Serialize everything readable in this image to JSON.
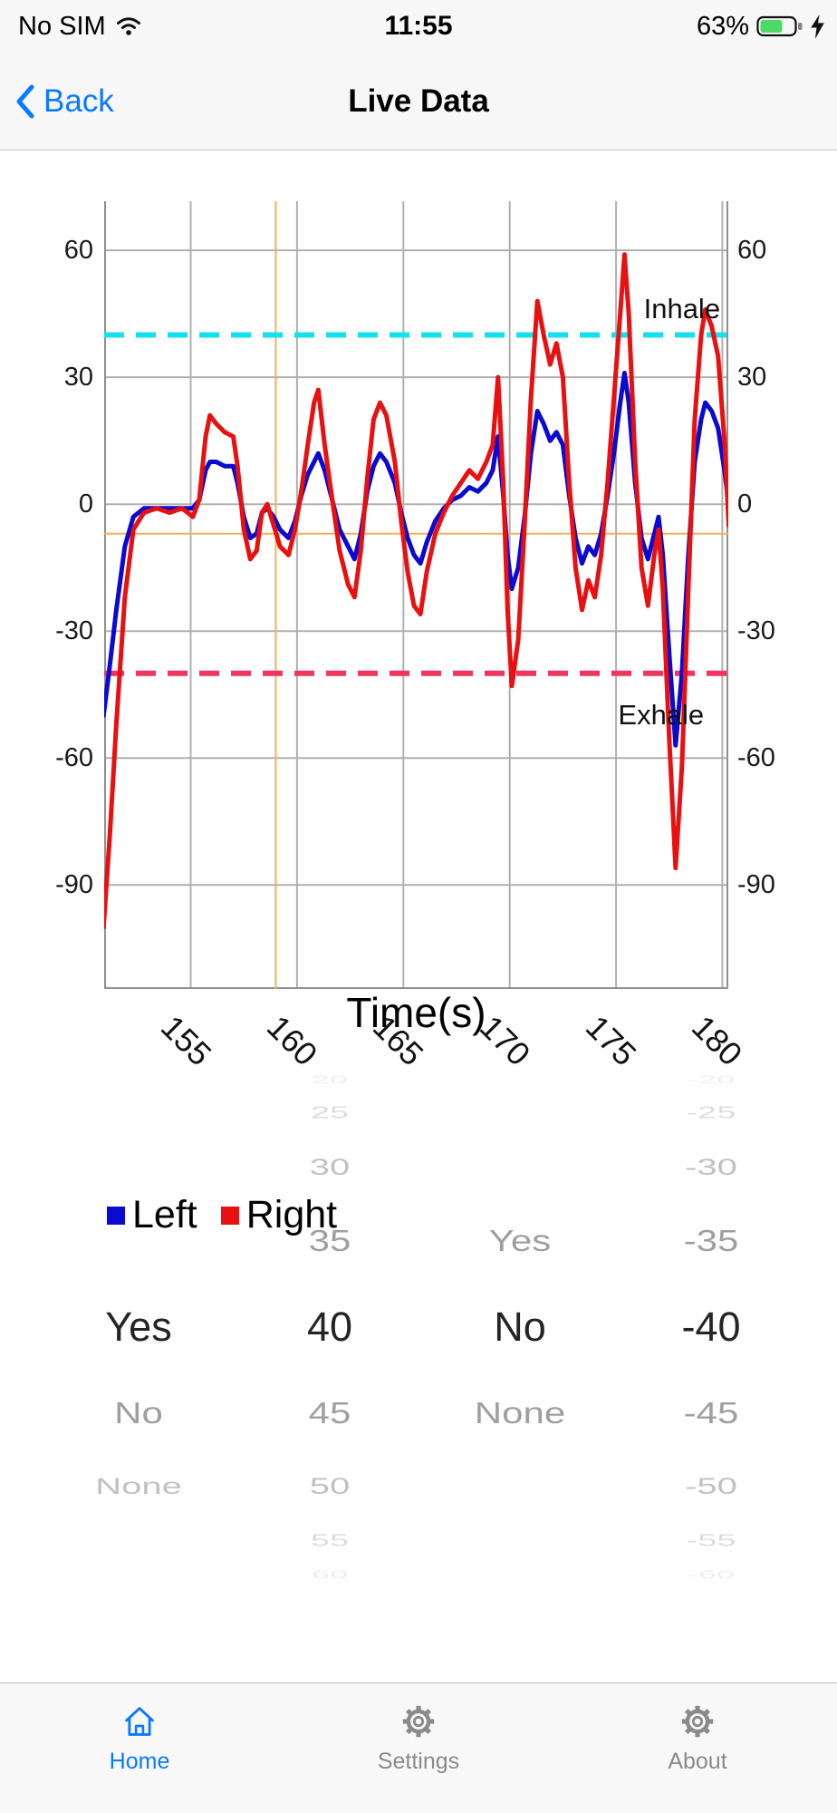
{
  "status_bar": {
    "carrier": "No SIM",
    "time": "11:55",
    "battery_percent": "63%"
  },
  "nav_bar": {
    "back_label": "Back",
    "title": "Live Data"
  },
  "chart_data": {
    "type": "line",
    "xlabel": "Time(s)",
    "x_ticks": [
      155,
      160,
      165,
      170,
      175,
      180
    ],
    "y_ticks": [
      60,
      30,
      0,
      -30,
      -60,
      -90
    ],
    "xlim": [
      150.93,
      180.28
    ],
    "ylim": [
      -114.6,
      71.6
    ],
    "grid": true,
    "annotations": [
      {
        "text": "Inhale",
        "x": 176.3,
        "y": 44
      },
      {
        "text": "Exhale",
        "x": 175.1,
        "y": -52
      }
    ],
    "reference_lines": [
      {
        "name": "inhale-threshold",
        "y": 40,
        "color": "#17e0ec",
        "style": "dashed"
      },
      {
        "name": "exhale-threshold",
        "y": -40,
        "color": "#f2355f",
        "style": "dashed"
      }
    ],
    "cursor": {
      "x": 159.0,
      "y": -7,
      "color": "#f2b05c"
    },
    "series": [
      {
        "name": "Left",
        "color": "#0a0ad2",
        "points": [
          [
            150.9,
            -50
          ],
          [
            151.2,
            -38
          ],
          [
            151.5,
            -25
          ],
          [
            151.9,
            -10
          ],
          [
            152.3,
            -3
          ],
          [
            152.8,
            -1
          ],
          [
            153.4,
            -1
          ],
          [
            154.0,
            -1
          ],
          [
            154.6,
            -1
          ],
          [
            155.1,
            -1
          ],
          [
            155.4,
            1
          ],
          [
            155.7,
            8
          ],
          [
            155.9,
            10
          ],
          [
            156.2,
            10
          ],
          [
            156.6,
            9
          ],
          [
            157.0,
            9
          ],
          [
            157.2,
            5
          ],
          [
            157.5,
            -3
          ],
          [
            157.8,
            -8
          ],
          [
            158.1,
            -7
          ],
          [
            158.35,
            -2
          ],
          [
            158.6,
            -1
          ],
          [
            158.9,
            -3
          ],
          [
            159.2,
            -6
          ],
          [
            159.6,
            -8
          ],
          [
            159.9,
            -4
          ],
          [
            160.2,
            2
          ],
          [
            160.5,
            7
          ],
          [
            160.8,
            10
          ],
          [
            161.0,
            12
          ],
          [
            161.3,
            8
          ],
          [
            161.6,
            2
          ],
          [
            162.0,
            -6
          ],
          [
            162.4,
            -10
          ],
          [
            162.7,
            -13
          ],
          [
            163.0,
            -7
          ],
          [
            163.3,
            3
          ],
          [
            163.6,
            9
          ],
          [
            163.9,
            12
          ],
          [
            164.2,
            10
          ],
          [
            164.6,
            5
          ],
          [
            164.9,
            -2
          ],
          [
            165.2,
            -8
          ],
          [
            165.5,
            -12
          ],
          [
            165.8,
            -14
          ],
          [
            166.1,
            -9
          ],
          [
            166.5,
            -4
          ],
          [
            166.9,
            -1
          ],
          [
            167.3,
            1
          ],
          [
            167.7,
            2
          ],
          [
            168.1,
            4
          ],
          [
            168.5,
            3
          ],
          [
            168.9,
            5
          ],
          [
            169.2,
            8
          ],
          [
            169.45,
            16
          ],
          [
            169.7,
            2
          ],
          [
            169.9,
            -12
          ],
          [
            170.1,
            -20
          ],
          [
            170.4,
            -15
          ],
          [
            170.7,
            -3
          ],
          [
            171.0,
            12
          ],
          [
            171.3,
            22
          ],
          [
            171.6,
            19
          ],
          [
            171.9,
            15
          ],
          [
            172.2,
            17
          ],
          [
            172.5,
            14
          ],
          [
            172.8,
            2
          ],
          [
            173.1,
            -8
          ],
          [
            173.4,
            -14
          ],
          [
            173.7,
            -10
          ],
          [
            174.0,
            -12
          ],
          [
            174.3,
            -7
          ],
          [
            174.6,
            2
          ],
          [
            174.9,
            12
          ],
          [
            175.2,
            24
          ],
          [
            175.4,
            31
          ],
          [
            175.6,
            24
          ],
          [
            175.9,
            5
          ],
          [
            176.2,
            -8
          ],
          [
            176.5,
            -13
          ],
          [
            176.8,
            -7
          ],
          [
            177.0,
            -3
          ],
          [
            177.2,
            -12
          ],
          [
            177.5,
            -35
          ],
          [
            177.8,
            -57
          ],
          [
            178.1,
            -40
          ],
          [
            178.4,
            -12
          ],
          [
            178.7,
            10
          ],
          [
            179.0,
            20
          ],
          [
            179.2,
            24
          ],
          [
            179.5,
            22
          ],
          [
            179.8,
            18
          ],
          [
            180.1,
            8
          ],
          [
            180.3,
            0
          ]
        ]
      },
      {
        "name": "Right",
        "color": "#e81010",
        "points": [
          [
            150.9,
            -100
          ],
          [
            151.2,
            -78
          ],
          [
            151.5,
            -52
          ],
          [
            151.9,
            -22
          ],
          [
            152.3,
            -6
          ],
          [
            152.8,
            -2
          ],
          [
            153.4,
            -1
          ],
          [
            154.0,
            -2
          ],
          [
            154.6,
            -1
          ],
          [
            155.1,
            -3
          ],
          [
            155.4,
            1
          ],
          [
            155.7,
            16
          ],
          [
            155.9,
            21
          ],
          [
            156.2,
            19
          ],
          [
            156.6,
            17
          ],
          [
            157.0,
            16
          ],
          [
            157.2,
            9
          ],
          [
            157.5,
            -6
          ],
          [
            157.8,
            -13
          ],
          [
            158.1,
            -11
          ],
          [
            158.35,
            -2
          ],
          [
            158.6,
            0
          ],
          [
            158.9,
            -5
          ],
          [
            159.2,
            -10
          ],
          [
            159.6,
            -12
          ],
          [
            159.9,
            -6
          ],
          [
            160.2,
            3
          ],
          [
            160.5,
            14
          ],
          [
            160.8,
            24
          ],
          [
            161.0,
            27
          ],
          [
            161.3,
            14
          ],
          [
            161.6,
            3
          ],
          [
            162.0,
            -11
          ],
          [
            162.4,
            -19
          ],
          [
            162.7,
            -22
          ],
          [
            163.0,
            -11
          ],
          [
            163.3,
            6
          ],
          [
            163.6,
            20
          ],
          [
            163.9,
            24
          ],
          [
            164.2,
            21
          ],
          [
            164.6,
            10
          ],
          [
            164.9,
            -4
          ],
          [
            165.2,
            -16
          ],
          [
            165.5,
            -24
          ],
          [
            165.8,
            -26
          ],
          [
            166.1,
            -16
          ],
          [
            166.5,
            -7
          ],
          [
            166.9,
            -2
          ],
          [
            167.3,
            2
          ],
          [
            167.7,
            5
          ],
          [
            168.1,
            8
          ],
          [
            168.5,
            6
          ],
          [
            168.9,
            10
          ],
          [
            169.2,
            14
          ],
          [
            169.45,
            30
          ],
          [
            169.7,
            5
          ],
          [
            169.9,
            -25
          ],
          [
            170.1,
            -43
          ],
          [
            170.4,
            -32
          ],
          [
            170.7,
            -5
          ],
          [
            171.0,
            25
          ],
          [
            171.3,
            48
          ],
          [
            171.6,
            40
          ],
          [
            171.9,
            33
          ],
          [
            172.2,
            38
          ],
          [
            172.5,
            30
          ],
          [
            172.8,
            5
          ],
          [
            173.1,
            -15
          ],
          [
            173.4,
            -25
          ],
          [
            173.7,
            -18
          ],
          [
            174.0,
            -22
          ],
          [
            174.3,
            -12
          ],
          [
            174.6,
            5
          ],
          [
            174.9,
            25
          ],
          [
            175.2,
            45
          ],
          [
            175.4,
            59
          ],
          [
            175.6,
            45
          ],
          [
            175.9,
            10
          ],
          [
            176.2,
            -15
          ],
          [
            176.5,
            -24
          ],
          [
            176.8,
            -12
          ],
          [
            177.0,
            -6
          ],
          [
            177.2,
            -20
          ],
          [
            177.5,
            -55
          ],
          [
            177.8,
            -86
          ],
          [
            178.1,
            -62
          ],
          [
            178.4,
            -20
          ],
          [
            178.7,
            20
          ],
          [
            179.0,
            40
          ],
          [
            179.2,
            46
          ],
          [
            179.5,
            42
          ],
          [
            179.8,
            35
          ],
          [
            180.1,
            15
          ],
          [
            180.3,
            -5
          ]
        ]
      }
    ]
  },
  "picker": {
    "columns": [
      {
        "name": "left-condition",
        "items": [
          "Yes",
          "No",
          "None"
        ],
        "selected_index": 0
      },
      {
        "name": "left-threshold",
        "items": [
          "20",
          "25",
          "30",
          "35",
          "40",
          "45",
          "50",
          "55",
          "60"
        ],
        "selected_index": 4
      },
      {
        "name": "right-condition",
        "items": [
          "Yes",
          "No",
          "None"
        ],
        "selected_index": 1
      },
      {
        "name": "right-threshold",
        "items": [
          "-20",
          "-25",
          "-30",
          "-35",
          "-40",
          "-45",
          "-50",
          "-55",
          "-60"
        ],
        "selected_index": 4
      }
    ]
  },
  "tab_bar": {
    "items": [
      {
        "label": "Home",
        "active": true
      },
      {
        "label": "Settings",
        "active": false
      },
      {
        "label": "About",
        "active": false
      }
    ]
  }
}
